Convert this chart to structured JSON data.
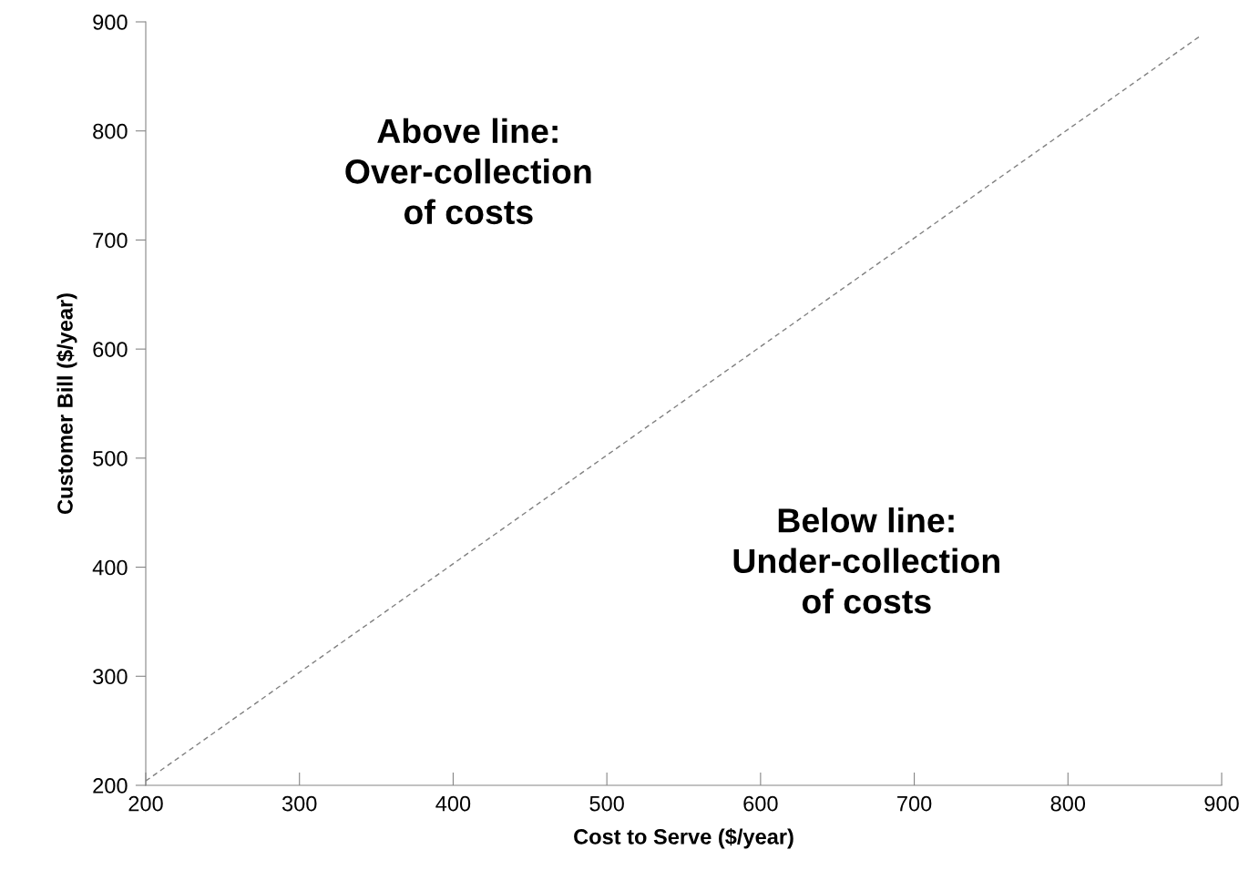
{
  "chart_data": {
    "type": "line",
    "xlabel": "Cost to Serve ($/year)",
    "ylabel": "Customer Bill ($/year)",
    "series": [
      {
        "color": "#808080",
        "x": [
          200,
          886
        ],
        "values": [
          204,
          887
        ],
        "line_style": "dashed"
      }
    ],
    "xlim": [
      200,
      900
    ],
    "xticks": [
      200,
      300,
      400,
      500,
      600,
      700,
      800,
      900
    ],
    "ylim": [
      200,
      900
    ],
    "yticks": [
      200,
      300,
      400,
      500,
      600,
      700,
      800,
      900
    ],
    "grid": false,
    "marker": "none",
    "annotations": [
      "Above line:\nOver-collection\nof costs",
      "Below line:\nUnder-collection\nof costs"
    ]
  }
}
